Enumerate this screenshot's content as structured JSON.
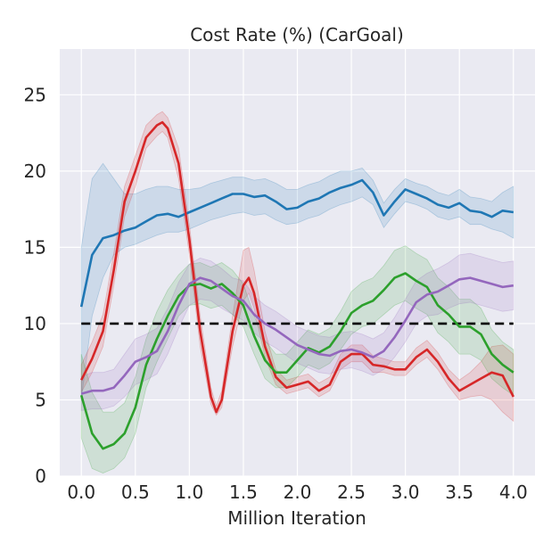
{
  "chart_data": {
    "type": "line",
    "title": "Cost Rate (%) (CarGoal)",
    "xlabel": "Million Iteration",
    "ylabel": "",
    "xlim": [
      -0.2,
      4.2
    ],
    "ylim": [
      0,
      28
    ],
    "xticks": [
      0.0,
      0.5,
      1.0,
      1.5,
      2.0,
      2.5,
      3.0,
      3.5,
      4.0
    ],
    "xtick_labels": [
      "0.0",
      "0.5",
      "1.0",
      "1.5",
      "2.0",
      "2.5",
      "3.0",
      "3.5",
      "4.0"
    ],
    "yticks": [
      0,
      5,
      10,
      15,
      20,
      25
    ],
    "ytick_labels": [
      "0",
      "5",
      "10",
      "15",
      "20",
      "25"
    ],
    "grid": true,
    "legend": "none",
    "background_color": "#eaeaf2",
    "threshold": {
      "y": 10,
      "x": [
        0.0,
        4.0
      ],
      "color": "#000000",
      "style": "dashed"
    },
    "series": [
      {
        "color": "#1f77b4",
        "x": [
          0.0,
          0.1,
          0.2,
          0.3,
          0.4,
          0.5,
          0.6,
          0.7,
          0.8,
          0.9,
          1.0,
          1.1,
          1.2,
          1.3,
          1.4,
          1.5,
          1.6,
          1.7,
          1.8,
          1.9,
          2.0,
          2.1,
          2.2,
          2.3,
          2.4,
          2.5,
          2.6,
          2.7,
          2.8,
          2.9,
          3.0,
          3.1,
          3.2,
          3.3,
          3.4,
          3.5,
          3.6,
          3.7,
          3.8,
          3.9,
          4.0
        ],
        "y": [
          11.1,
          14.5,
          15.6,
          15.8,
          16.1,
          16.3,
          16.7,
          17.1,
          17.2,
          17.0,
          17.3,
          17.6,
          17.9,
          18.2,
          18.5,
          18.5,
          18.3,
          18.4,
          18.0,
          17.5,
          17.6,
          18.0,
          18.2,
          18.6,
          18.9,
          19.1,
          19.4,
          18.6,
          17.1,
          18.0,
          18.8,
          18.5,
          18.2,
          17.8,
          17.6,
          17.9,
          17.4,
          17.3,
          17.0,
          17.4,
          17.3
        ],
        "lower": [
          5.0,
          10.5,
          13.0,
          14.5,
          15.0,
          15.2,
          15.5,
          15.8,
          16.0,
          16.0,
          16.2,
          16.5,
          16.8,
          17.0,
          17.2,
          17.3,
          17.1,
          17.2,
          16.8,
          16.5,
          16.6,
          16.9,
          17.1,
          17.5,
          17.8,
          18.0,
          18.3,
          17.8,
          16.3,
          17.2,
          18.0,
          17.8,
          17.5,
          17.0,
          16.8,
          17.0,
          16.5,
          16.5,
          16.2,
          16.0,
          15.6
        ],
        "upper": [
          15.0,
          19.5,
          20.5,
          19.5,
          18.5,
          18.5,
          18.8,
          19.0,
          19.0,
          18.8,
          18.8,
          18.9,
          19.2,
          19.4,
          19.6,
          19.6,
          19.4,
          19.5,
          19.2,
          18.8,
          18.8,
          19.1,
          19.3,
          19.7,
          20.0,
          20.0,
          20.2,
          19.4,
          17.9,
          18.8,
          19.5,
          19.2,
          19.0,
          18.6,
          18.4,
          18.8,
          18.3,
          18.2,
          18.0,
          18.6,
          19.0
        ]
      },
      {
        "color": "#d62728",
        "x": [
          0.0,
          0.1,
          0.2,
          0.3,
          0.4,
          0.5,
          0.6,
          0.7,
          0.75,
          0.8,
          0.9,
          1.0,
          1.1,
          1.2,
          1.25,
          1.3,
          1.4,
          1.5,
          1.55,
          1.6,
          1.7,
          1.8,
          1.9,
          2.0,
          2.1,
          2.2,
          2.3,
          2.4,
          2.5,
          2.6,
          2.7,
          2.8,
          2.9,
          3.0,
          3.1,
          3.2,
          3.3,
          3.4,
          3.5,
          3.6,
          3.7,
          3.8,
          3.9,
          4.0
        ],
        "y": [
          6.3,
          7.7,
          9.5,
          13.5,
          18.0,
          20.0,
          22.2,
          23.0,
          23.2,
          22.8,
          20.5,
          15.5,
          9.5,
          5.2,
          4.2,
          5.0,
          9.5,
          12.5,
          13.0,
          12.0,
          8.5,
          6.5,
          5.8,
          6.0,
          6.2,
          5.6,
          6.0,
          7.5,
          8.0,
          8.0,
          7.3,
          7.2,
          7.0,
          7.0,
          7.8,
          8.3,
          7.5,
          6.4,
          5.6,
          6.0,
          6.4,
          6.8,
          6.6,
          5.2
        ],
        "lower": [
          5.5,
          6.8,
          8.5,
          12.5,
          17.0,
          19.0,
          21.5,
          22.3,
          22.6,
          22.2,
          19.5,
          14.5,
          8.5,
          4.7,
          4.0,
          4.5,
          8.5,
          11.5,
          12.0,
          11.0,
          7.8,
          6.0,
          5.4,
          5.6,
          5.8,
          5.2,
          5.6,
          7.0,
          7.5,
          7.5,
          6.8,
          6.8,
          6.6,
          6.6,
          7.3,
          7.8,
          7.0,
          5.9,
          5.0,
          5.2,
          5.3,
          5.0,
          4.2,
          3.6
        ],
        "upper": [
          7.3,
          8.8,
          10.6,
          14.6,
          19.0,
          21.0,
          23.0,
          23.7,
          23.9,
          23.5,
          21.5,
          16.5,
          10.5,
          5.8,
          4.6,
          5.6,
          10.5,
          14.8,
          15.0,
          13.5,
          9.5,
          7.0,
          6.3,
          6.5,
          6.7,
          6.1,
          6.5,
          8.0,
          8.6,
          8.6,
          7.9,
          7.7,
          7.5,
          7.5,
          8.4,
          8.9,
          8.1,
          7.0,
          6.3,
          6.8,
          7.5,
          8.5,
          8.6,
          8.0
        ]
      },
      {
        "color": "#2ca02c",
        "x": [
          0.0,
          0.1,
          0.2,
          0.3,
          0.4,
          0.5,
          0.6,
          0.7,
          0.8,
          0.9,
          1.0,
          1.1,
          1.2,
          1.3,
          1.4,
          1.5,
          1.6,
          1.7,
          1.8,
          1.9,
          2.0,
          2.1,
          2.2,
          2.3,
          2.4,
          2.5,
          2.6,
          2.7,
          2.8,
          2.9,
          3.0,
          3.1,
          3.2,
          3.3,
          3.4,
          3.5,
          3.6,
          3.7,
          3.8,
          3.9,
          4.0
        ],
        "y": [
          5.3,
          2.8,
          1.8,
          2.1,
          2.8,
          4.5,
          7.3,
          9.0,
          10.5,
          11.8,
          12.5,
          12.6,
          12.3,
          12.6,
          12.0,
          11.2,
          9.2,
          7.6,
          6.8,
          6.8,
          7.6,
          8.4,
          8.1,
          8.5,
          9.5,
          10.7,
          11.2,
          11.5,
          12.2,
          13.0,
          13.3,
          12.8,
          12.4,
          11.2,
          10.6,
          9.8,
          9.8,
          9.3,
          8.0,
          7.3,
          6.8
        ],
        "lower": [
          2.5,
          0.5,
          0.2,
          0.5,
          1.2,
          2.8,
          5.8,
          7.5,
          9.0,
          10.5,
          11.2,
          11.3,
          11.0,
          11.2,
          10.6,
          9.8,
          8.0,
          6.4,
          5.8,
          5.8,
          6.5,
          7.3,
          7.0,
          7.4,
          8.3,
          9.3,
          9.8,
          10.0,
          10.6,
          11.2,
          11.5,
          11.0,
          10.6,
          9.4,
          8.8,
          8.0,
          8.0,
          7.6,
          6.4,
          5.8,
          5.3
        ],
        "upper": [
          8.0,
          5.5,
          4.2,
          4.2,
          4.8,
          6.5,
          9.0,
          10.8,
          12.2,
          13.2,
          13.9,
          14.0,
          13.7,
          14.0,
          13.5,
          12.6,
          10.5,
          8.9,
          8.0,
          8.0,
          8.8,
          9.6,
          9.3,
          9.7,
          10.8,
          12.1,
          12.7,
          13.0,
          13.8,
          14.8,
          15.1,
          14.6,
          14.2,
          13.0,
          12.4,
          11.6,
          11.6,
          11.0,
          9.6,
          8.8,
          8.3
        ]
      },
      {
        "color": "#9467bd",
        "x": [
          0.0,
          0.1,
          0.2,
          0.3,
          0.4,
          0.5,
          0.6,
          0.7,
          0.8,
          0.9,
          1.0,
          1.1,
          1.2,
          1.3,
          1.4,
          1.5,
          1.6,
          1.7,
          1.8,
          1.9,
          2.0,
          2.1,
          2.2,
          2.3,
          2.4,
          2.5,
          2.6,
          2.7,
          2.8,
          2.9,
          3.0,
          3.1,
          3.2,
          3.3,
          3.4,
          3.5,
          3.6,
          3.7,
          3.8,
          3.9,
          4.0
        ],
        "y": [
          5.4,
          5.6,
          5.6,
          5.8,
          6.6,
          7.5,
          7.8,
          8.2,
          9.5,
          11.2,
          12.6,
          13.0,
          12.8,
          12.3,
          11.8,
          11.5,
          10.6,
          10.0,
          9.6,
          9.1,
          8.6,
          8.3,
          8.0,
          7.9,
          8.2,
          8.3,
          8.1,
          7.8,
          8.2,
          9.1,
          10.2,
          11.4,
          11.9,
          12.1,
          12.5,
          12.9,
          13.0,
          12.8,
          12.6,
          12.4,
          12.5
        ],
        "lower": [
          4.3,
          4.4,
          4.4,
          4.6,
          5.2,
          6.0,
          6.3,
          6.7,
          8.0,
          9.7,
          11.2,
          11.6,
          11.5,
          11.0,
          10.6,
          10.2,
          9.4,
          8.8,
          8.4,
          7.9,
          7.4,
          7.1,
          6.8,
          6.7,
          7.0,
          7.1,
          6.9,
          6.6,
          7.0,
          7.8,
          8.8,
          10.0,
          10.5,
          10.6,
          11.0,
          11.3,
          11.4,
          11.2,
          11.0,
          10.8,
          10.9
        ],
        "upper": [
          6.5,
          6.8,
          6.8,
          7.0,
          8.0,
          9.0,
          9.3,
          9.7,
          11.0,
          12.7,
          13.9,
          14.3,
          14.1,
          13.6,
          13.0,
          12.8,
          11.8,
          11.2,
          10.8,
          10.3,
          9.8,
          9.5,
          9.2,
          9.1,
          9.4,
          9.5,
          9.3,
          9.0,
          9.4,
          10.4,
          11.6,
          12.8,
          13.3,
          13.6,
          14.0,
          14.5,
          14.6,
          14.4,
          14.2,
          14.0,
          14.1
        ]
      }
    ]
  }
}
